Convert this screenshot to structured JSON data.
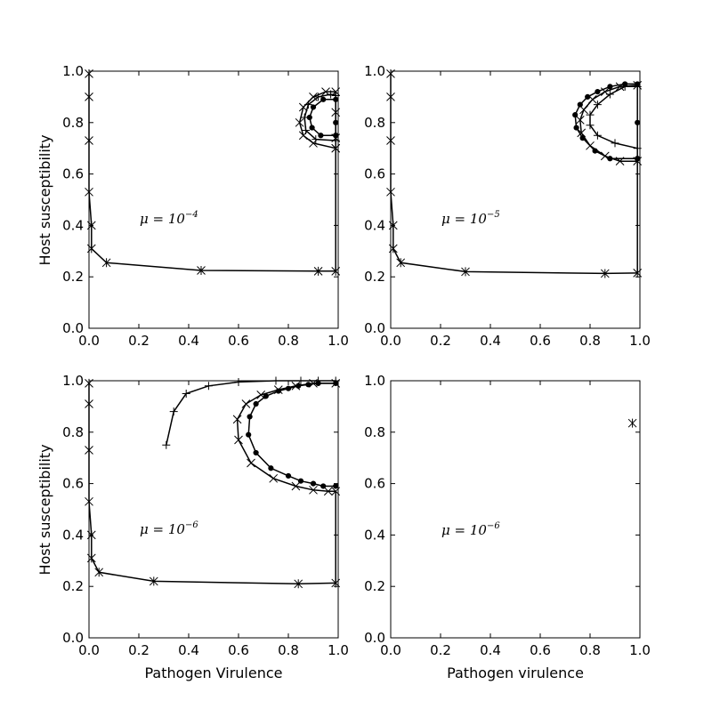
{
  "chart_data": [
    {
      "type": "line",
      "panel": "top-left",
      "xlabel": "",
      "ylabel": "Host susceptibility",
      "xlim": [
        0,
        1
      ],
      "ylim": [
        0,
        1
      ],
      "xticks": [
        "0.0",
        "0.2",
        "0.4",
        "0.6",
        "0.8",
        "1.0"
      ],
      "yticks": [
        "0.0",
        "0.2",
        "0.4",
        "0.6",
        "0.8",
        "1.0"
      ],
      "annotation": {
        "base": "μ = 10",
        "exp": "−4",
        "x": 0.2,
        "y": 0.41
      },
      "series": [
        {
          "marker": "star",
          "points": [
            [
              0.0,
              0.99
            ],
            [
              0.0,
              0.9
            ],
            [
              0.0,
              0.73
            ],
            [
              0.0,
              0.53
            ],
            [
              0.01,
              0.4
            ],
            [
              0.01,
              0.31
            ],
            [
              0.07,
              0.255
            ],
            [
              0.45,
              0.225
            ],
            [
              0.92,
              0.222
            ],
            [
              0.99,
              0.222
            ]
          ]
        },
        {
          "marker": "none",
          "points": [
            [
              0.99,
              0.222
            ],
            [
              0.99,
              0.5
            ],
            [
              0.99,
              0.7
            ]
          ]
        },
        {
          "marker": "x",
          "points": [
            [
              0.99,
              0.7
            ],
            [
              0.9,
              0.72
            ],
            [
              0.86,
              0.75
            ],
            [
              0.845,
              0.8
            ],
            [
              0.86,
              0.86
            ],
            [
              0.9,
              0.9
            ],
            [
              0.95,
              0.92
            ],
            [
              0.99,
              0.92
            ],
            [
              0.99,
              0.84
            ],
            [
              0.99,
              0.74
            ],
            [
              0.99,
              0.7
            ]
          ]
        },
        {
          "marker": "dot",
          "points": [
            [
              0.99,
              0.75
            ],
            [
              0.93,
              0.75
            ],
            [
              0.895,
              0.78
            ],
            [
              0.885,
              0.82
            ],
            [
              0.9,
              0.86
            ],
            [
              0.94,
              0.89
            ],
            [
              0.99,
              0.89
            ],
            [
              0.99,
              0.8
            ],
            [
              0.99,
              0.75
            ]
          ]
        },
        {
          "marker": "plus",
          "points": [
            [
              0.99,
              0.73
            ],
            [
              0.91,
              0.735
            ],
            [
              0.87,
              0.77
            ],
            [
              0.865,
              0.82
            ],
            [
              0.88,
              0.87
            ],
            [
              0.92,
              0.9
            ],
            [
              0.97,
              0.91
            ],
            [
              0.99,
              0.905
            ]
          ]
        }
      ]
    },
    {
      "type": "line",
      "panel": "top-right",
      "xlabel": "",
      "ylabel": "",
      "xlim": [
        0,
        1
      ],
      "ylim": [
        0,
        1
      ],
      "xticks": [
        "0.0",
        "0.2",
        "0.4",
        "0.6",
        "0.8",
        "1.0"
      ],
      "yticks": [
        "0.0",
        "0.2",
        "0.4",
        "0.6",
        "0.8",
        "1.0"
      ],
      "annotation": {
        "base": "μ = 10",
        "exp": "−5",
        "x": 0.2,
        "y": 0.41
      },
      "series": [
        {
          "marker": "star",
          "points": [
            [
              0.0,
              0.99
            ],
            [
              0.0,
              0.9
            ],
            [
              0.0,
              0.73
            ],
            [
              0.0,
              0.53
            ],
            [
              0.01,
              0.4
            ],
            [
              0.01,
              0.31
            ],
            [
              0.04,
              0.255
            ],
            [
              0.3,
              0.22
            ],
            [
              0.86,
              0.213
            ],
            [
              0.99,
              0.215
            ]
          ]
        },
        {
          "marker": "none",
          "points": [
            [
              0.99,
              0.215
            ],
            [
              0.99,
              0.45
            ],
            [
              0.99,
              0.66
            ]
          ]
        },
        {
          "marker": "dot",
          "points": [
            [
              0.99,
              0.66
            ],
            [
              0.88,
              0.66
            ],
            [
              0.82,
              0.69
            ],
            [
              0.77,
              0.74
            ],
            [
              0.745,
              0.78
            ],
            [
              0.74,
              0.83
            ],
            [
              0.76,
              0.87
            ],
            [
              0.79,
              0.9
            ],
            [
              0.83,
              0.92
            ],
            [
              0.88,
              0.94
            ],
            [
              0.94,
              0.95
            ],
            [
              0.99,
              0.95
            ],
            [
              0.99,
              0.8
            ],
            [
              0.99,
              0.66
            ]
          ]
        },
        {
          "marker": "x",
          "points": [
            [
              0.99,
              0.65
            ],
            [
              0.92,
              0.65
            ],
            [
              0.86,
              0.67
            ],
            [
              0.8,
              0.71
            ],
            [
              0.765,
              0.76
            ],
            [
              0.76,
              0.81
            ],
            [
              0.775,
              0.85
            ],
            [
              0.81,
              0.89
            ],
            [
              0.86,
              0.92
            ],
            [
              0.92,
              0.94
            ],
            [
              0.99,
              0.945
            ]
          ]
        },
        {
          "marker": "plus",
          "points": [
            [
              0.99,
              0.7
            ],
            [
              0.9,
              0.72
            ],
            [
              0.83,
              0.75
            ],
            [
              0.8,
              0.79
            ],
            [
              0.8,
              0.83
            ],
            [
              0.83,
              0.87
            ],
            [
              0.88,
              0.91
            ],
            [
              0.94,
              0.94
            ],
            [
              0.99,
              0.94
            ]
          ]
        }
      ]
    },
    {
      "type": "line",
      "panel": "bottom-left",
      "xlabel": "Pathogen Virulence",
      "ylabel": "Host susceptibility",
      "xlim": [
        0,
        1
      ],
      "ylim": [
        0,
        1
      ],
      "xticks": [
        "0.0",
        "0.2",
        "0.4",
        "0.6",
        "0.8",
        "1.0"
      ],
      "yticks": [
        "0.0",
        "0.2",
        "0.4",
        "0.6",
        "0.8",
        "1.0"
      ],
      "annotation": {
        "base": "μ = 10",
        "exp": "−6",
        "x": 0.2,
        "y": 0.41
      },
      "series": [
        {
          "marker": "star",
          "points": [
            [
              0.0,
              0.99
            ],
            [
              0.0,
              0.91
            ],
            [
              0.0,
              0.73
            ],
            [
              0.0,
              0.53
            ],
            [
              0.01,
              0.4
            ],
            [
              0.01,
              0.31
            ],
            [
              0.04,
              0.255
            ],
            [
              0.26,
              0.22
            ],
            [
              0.84,
              0.21
            ],
            [
              0.99,
              0.213
            ]
          ]
        },
        {
          "marker": "none",
          "points": [
            [
              0.99,
              0.213
            ],
            [
              0.99,
              0.45
            ],
            [
              0.99,
              0.57
            ]
          ]
        },
        {
          "marker": "plus",
          "points": [
            [
              0.31,
              0.75
            ],
            [
              0.34,
              0.88
            ],
            [
              0.39,
              0.95
            ],
            [
              0.48,
              0.98
            ],
            [
              0.6,
              0.995
            ],
            [
              0.75,
              1.0
            ],
            [
              0.85,
              1.0
            ],
            [
              0.92,
              1.0
            ],
            [
              0.99,
              1.0
            ]
          ]
        },
        {
          "marker": "x",
          "points": [
            [
              0.99,
              0.57
            ],
            [
              0.96,
              0.57
            ],
            [
              0.9,
              0.575
            ],
            [
              0.83,
              0.59
            ],
            [
              0.74,
              0.62
            ],
            [
              0.65,
              0.68
            ],
            [
              0.6,
              0.77
            ],
            [
              0.595,
              0.85
            ],
            [
              0.63,
              0.91
            ],
            [
              0.69,
              0.945
            ],
            [
              0.76,
              0.965
            ],
            [
              0.83,
              0.98
            ],
            [
              0.9,
              0.99
            ],
            [
              0.99,
              0.99
            ]
          ]
        },
        {
          "marker": "dot",
          "points": [
            [
              0.99,
              0.59
            ],
            [
              0.94,
              0.59
            ],
            [
              0.9,
              0.6
            ],
            [
              0.85,
              0.61
            ],
            [
              0.8,
              0.63
            ],
            [
              0.73,
              0.66
            ],
            [
              0.67,
              0.72
            ],
            [
              0.64,
              0.79
            ],
            [
              0.645,
              0.86
            ],
            [
              0.67,
              0.91
            ],
            [
              0.71,
              0.94
            ],
            [
              0.76,
              0.96
            ],
            [
              0.8,
              0.97
            ],
            [
              0.84,
              0.98
            ],
            [
              0.88,
              0.985
            ],
            [
              0.92,
              0.99
            ],
            [
              0.99,
              0.99
            ]
          ]
        }
      ]
    },
    {
      "type": "scatter",
      "panel": "bottom-right",
      "xlabel": "Pathogen virulence",
      "ylabel": "",
      "xlim": [
        0,
        1
      ],
      "ylim": [
        0,
        1
      ],
      "xticks": [
        "0.0",
        "0.2",
        "0.4",
        "0.6",
        "0.8",
        "1.0"
      ],
      "yticks": [
        "0.0",
        "0.2",
        "0.4",
        "0.6",
        "0.8",
        "1.0"
      ],
      "annotation": {
        "base": "μ = 10",
        "exp": "−6",
        "x": 0.2,
        "y": 0.41
      },
      "series": [
        {
          "marker": "star",
          "points": [
            [
              0.97,
              0.835
            ]
          ]
        }
      ]
    }
  ]
}
